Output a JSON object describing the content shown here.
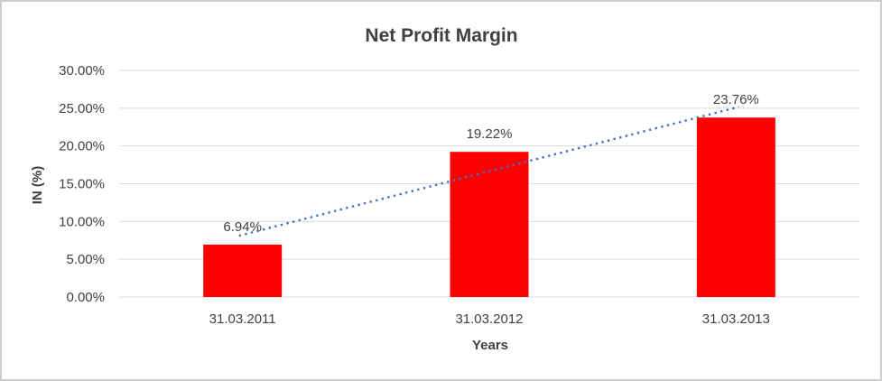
{
  "chart_data": {
    "type": "bar",
    "title": "Net Profit Margin",
    "xlabel": "Years",
    "ylabel": "IN (%)",
    "categories": [
      "31.03.2011",
      "31.03.2012",
      "31.03.2013"
    ],
    "values": [
      6.94,
      19.22,
      23.76
    ],
    "data_labels": [
      "6.94%",
      "19.22%",
      "23.76%"
    ],
    "ylim": [
      0,
      30
    ],
    "ytick_step": 5,
    "yticks": [
      "0.00%",
      "5.00%",
      "10.00%",
      "15.00%",
      "20.00%",
      "25.00%",
      "30.00%"
    ],
    "grid": true,
    "legend": "none",
    "trendline": {
      "type": "linear",
      "style": "dotted"
    },
    "colors": {
      "bar": "#FF0000",
      "trendline": "#4472C4",
      "gridline": "#D9D9D9",
      "text": "#404040",
      "border": "#CDCDCD",
      "background": "#FFFFFF"
    }
  }
}
